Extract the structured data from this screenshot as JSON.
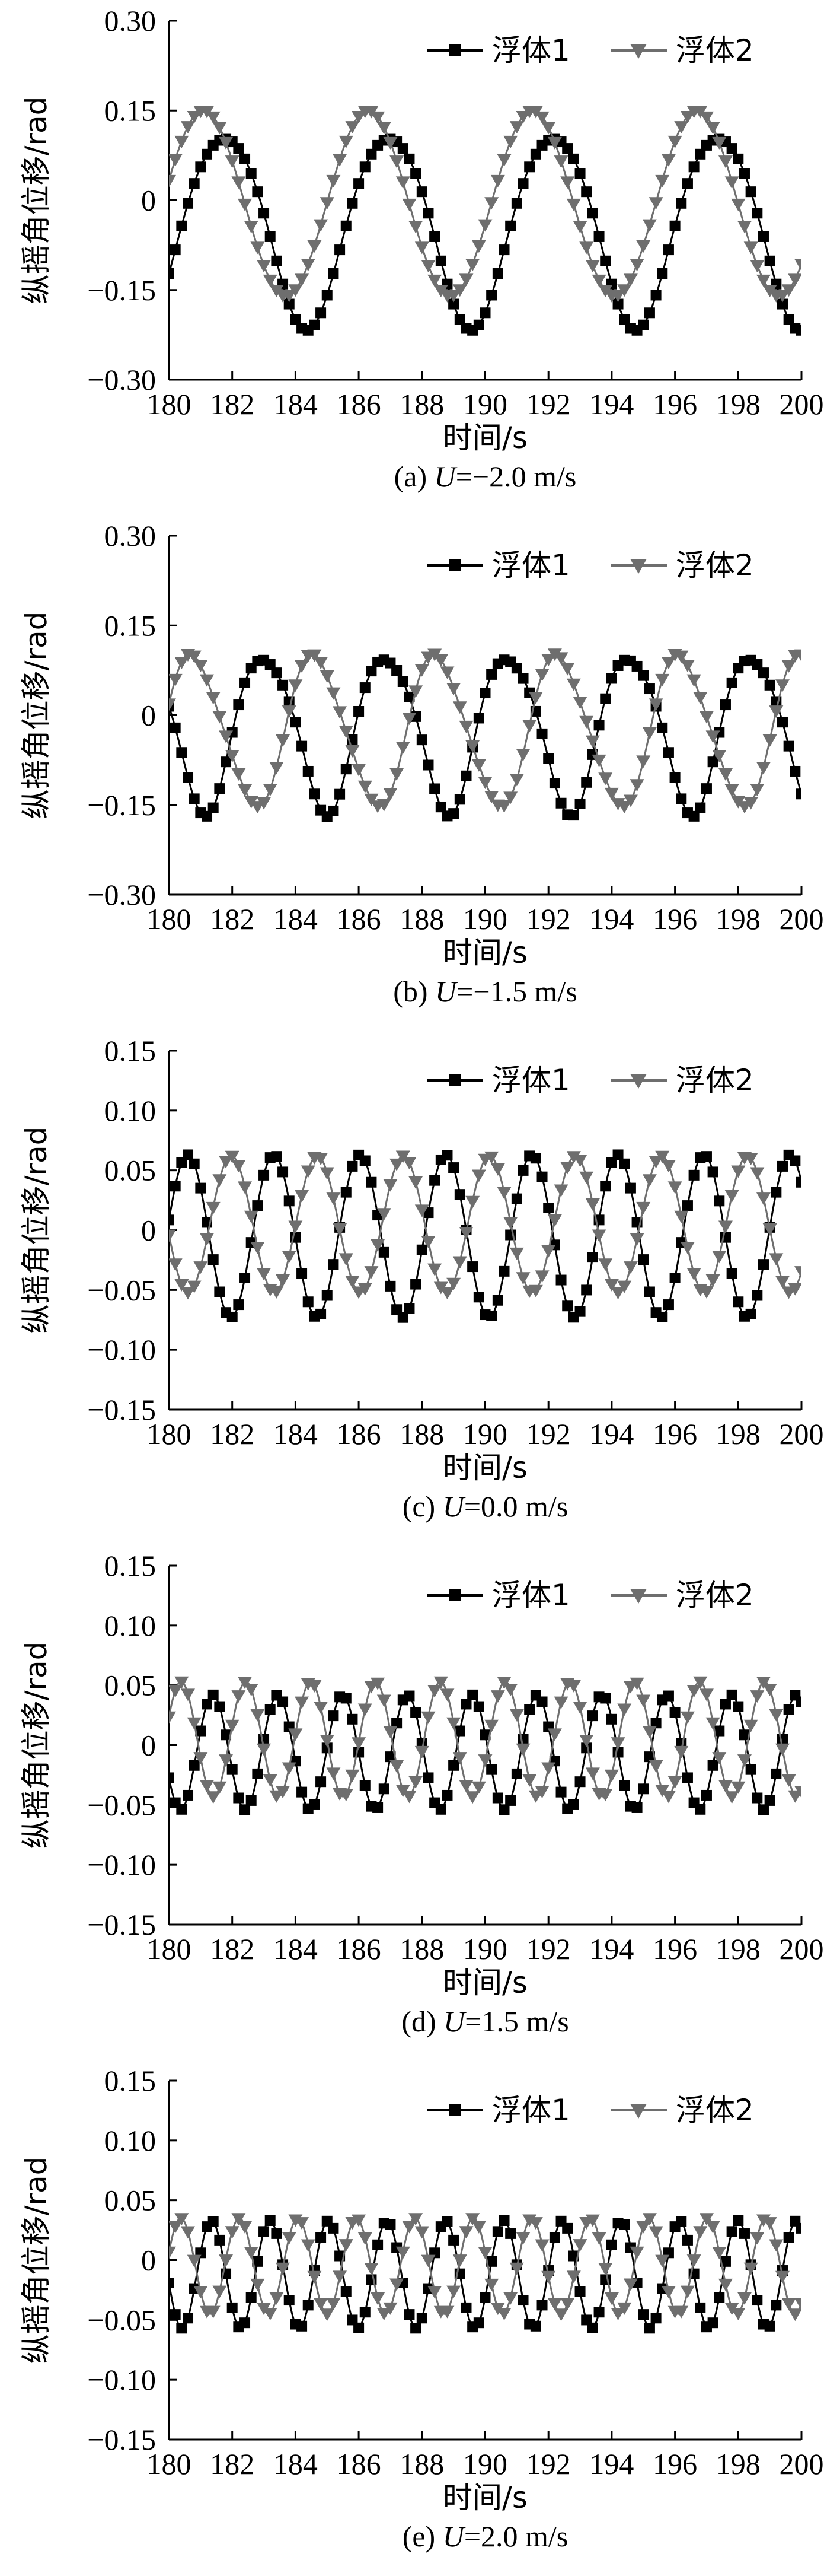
{
  "colors": {
    "series1": "#000000",
    "series2": "#6e6e6e",
    "axis": "#000000",
    "background": "#ffffff"
  },
  "chart_data": [
    {
      "type": "line",
      "caption": "(a) U=−2.0 m/s",
      "caption_prefix": "(a) ",
      "caption_var": "U",
      "caption_rest": "=−2.0 m/s",
      "xlabel": "时间/s",
      "ylabel": "纵摇角位移/rad",
      "xlim": [
        180,
        200
      ],
      "ylim": [
        -0.3,
        0.3
      ],
      "xticks": [
        180,
        182,
        184,
        186,
        188,
        190,
        192,
        194,
        196,
        198,
        200
      ],
      "yticks": [
        -0.3,
        -0.15,
        0,
        0.15,
        0.3
      ],
      "ytick_labels": [
        "−0.30",
        "−0.15",
        "0",
        "0.15",
        "0.30"
      ],
      "series": [
        {
          "name": "浮体1",
          "marker": "square",
          "amp": 0.16,
          "offset": -0.045,
          "period": 5.2,
          "phase": -0.55,
          "h2": 0.08,
          "h2phase": 0.5,
          "step": 0.2
        },
        {
          "name": "浮体2",
          "marker": "triangle-down",
          "amp": 0.155,
          "offset": -0.005,
          "period": 5.2,
          "phase": 0.25,
          "h2": 0.0,
          "h2phase": 0,
          "step": 0.2
        }
      ]
    },
    {
      "type": "line",
      "caption": "(b) U=−1.5 m/s",
      "caption_prefix": "(b) ",
      "caption_var": "U",
      "caption_rest": "=−1.5 m/s",
      "xlabel": "时间/s",
      "ylabel": "纵摇角位移/rad",
      "xlim": [
        180,
        200
      ],
      "ylim": [
        -0.3,
        0.3
      ],
      "xticks": [
        180,
        182,
        184,
        186,
        188,
        190,
        192,
        194,
        196,
        198,
        200
      ],
      "yticks": [
        -0.3,
        -0.15,
        0,
        0.15,
        0.3
      ],
      "ytick_labels": [
        "−0.30",
        "−0.15",
        "0",
        "0.15",
        "0.30"
      ],
      "series": [
        {
          "name": "浮体1",
          "marker": "square",
          "amp": 0.13,
          "offset": -0.025,
          "period": 3.85,
          "phase": 2.9,
          "h2": 0.12,
          "h2phase": 0.6,
          "step": 0.2
        },
        {
          "name": "浮体2",
          "marker": "triangle-down",
          "amp": 0.125,
          "offset": -0.025,
          "period": 3.85,
          "phase": 0.3,
          "h2": 0.1,
          "h2phase": 0.6,
          "step": 0.2
        }
      ]
    },
    {
      "type": "line",
      "caption": "(c) U=0.0 m/s",
      "caption_prefix": "(c) ",
      "caption_var": "U",
      "caption_rest": "=0.0 m/s",
      "xlabel": "时间/s",
      "ylabel": "纵摇角位移/rad",
      "xlim": [
        180,
        200
      ],
      "ylim": [
        -0.15,
        0.15
      ],
      "xticks": [
        180,
        182,
        184,
        186,
        188,
        190,
        192,
        194,
        196,
        198,
        200
      ],
      "yticks": [
        -0.15,
        -0.1,
        -0.05,
        0,
        0.05,
        0.1,
        0.15
      ],
      "ytick_labels": [
        "−0.15",
        "−0.10",
        "−0.05",
        "0",
        "0.05",
        "0.10",
        "0.15"
      ],
      "series": [
        {
          "name": "浮体1",
          "marker": "square",
          "amp": 0.068,
          "offset": -0.005,
          "period": 2.72,
          "phase": 0.2,
          "h2": 0.0,
          "h2phase": 0,
          "step": 0.2
        },
        {
          "name": "浮体2",
          "marker": "triangle-down",
          "amp": 0.057,
          "offset": 0.005,
          "period": 2.72,
          "phase": 3.3,
          "h2": 0.0,
          "h2phase": 0,
          "step": 0.2
        }
      ]
    },
    {
      "type": "line",
      "caption": "(d) U=1.5 m/s",
      "caption_prefix": "(d) ",
      "caption_var": "U",
      "caption_rest": "=1.5 m/s",
      "xlabel": "时间/s",
      "ylabel": "纵摇角位移/rad",
      "xlim": [
        180,
        200
      ],
      "ylim": [
        -0.15,
        0.15
      ],
      "xticks": [
        180,
        182,
        184,
        186,
        188,
        190,
        192,
        194,
        196,
        198,
        200
      ],
      "yticks": [
        -0.15,
        -0.1,
        -0.05,
        0,
        0.05,
        0.1,
        0.15
      ],
      "ytick_labels": [
        "−0.15",
        "−0.10",
        "−0.05",
        "0",
        "0.05",
        "0.10",
        "0.15"
      ],
      "series": [
        {
          "name": "浮体1",
          "marker": "square",
          "amp": 0.048,
          "offset": -0.006,
          "period": 2.05,
          "phase": 3.6,
          "h2": 0.0,
          "h2phase": 0,
          "step": 0.2
        },
        {
          "name": "浮体2",
          "marker": "triangle-down",
          "amp": 0.048,
          "offset": 0.005,
          "period": 2.05,
          "phase": 0.4,
          "h2": 0.0,
          "h2phase": 0,
          "step": 0.2
        }
      ]
    },
    {
      "type": "line",
      "caption": "(e) U=2.0 m/s",
      "caption_prefix": "(e) ",
      "caption_var": "U",
      "caption_rest": "=2.0 m/s",
      "xlabel": "时间/s",
      "ylabel": "纵摇角位移/rad",
      "xlim": [
        180,
        200
      ],
      "ylim": [
        -0.15,
        0.15
      ],
      "xticks": [
        180,
        182,
        184,
        186,
        188,
        190,
        192,
        194,
        196,
        198,
        200
      ],
      "yticks": [
        -0.15,
        -0.1,
        -0.05,
        0,
        0.05,
        0.1,
        0.15
      ],
      "ytick_labels": [
        "−0.15",
        "−0.10",
        "−0.05",
        "0",
        "0.05",
        "0.10",
        "0.15"
      ],
      "series": [
        {
          "name": "浮体1",
          "marker": "square",
          "amp": 0.045,
          "offset": -0.012,
          "period": 1.85,
          "phase": 3.3,
          "h2": 0.0,
          "h2phase": 0,
          "step": 0.2
        },
        {
          "name": "浮体2",
          "marker": "triangle-down",
          "amp": 0.04,
          "offset": -0.005,
          "period": 1.85,
          "phase": 0.3,
          "h2": 0.0,
          "h2phase": 0,
          "step": 0.2
        }
      ]
    }
  ]
}
